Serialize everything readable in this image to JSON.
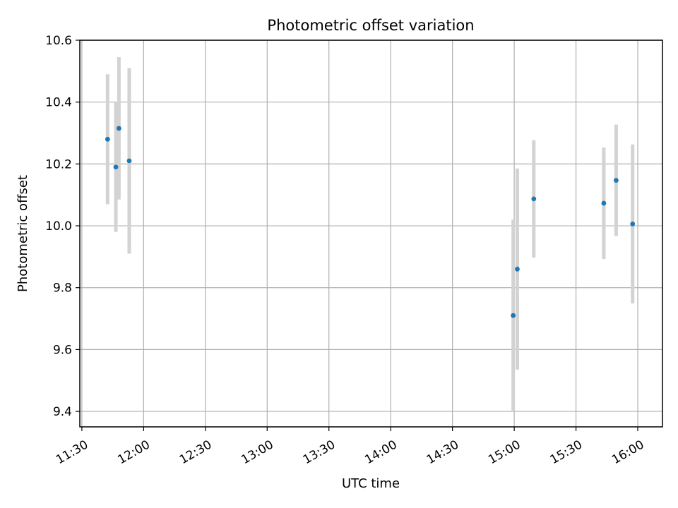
{
  "chart_data": {
    "type": "scatter",
    "title": "Photometric offset variation",
    "xlabel": "UTC time",
    "ylabel": "Photometric offset",
    "xlim": [
      "11:29",
      "16:12"
    ],
    "ylim": [
      9.35,
      10.6
    ],
    "x_ticks": [
      "11:30",
      "12:00",
      "12:30",
      "13:00",
      "13:30",
      "14:00",
      "14:30",
      "15:00",
      "15:30",
      "16:00"
    ],
    "y_ticks": [
      "9.4",
      "9.6",
      "9.8",
      "10.0",
      "10.2",
      "10.4",
      "10.6"
    ],
    "grid": true,
    "errorbar_color": "#d3d3d3",
    "marker_color": "#1f77b4",
    "points": [
      {
        "x": "11:42:30",
        "y": 10.28,
        "err": 0.21
      },
      {
        "x": "11:46:30",
        "y": 10.19,
        "err": 0.21
      },
      {
        "x": "11:48:00",
        "y": 10.315,
        "err": 0.23
      },
      {
        "x": "11:53:00",
        "y": 10.21,
        "err": 0.3
      },
      {
        "x": "14:59:30",
        "y": 9.71,
        "err": 0.31
      },
      {
        "x": "15:01:30",
        "y": 9.86,
        "err": 0.325
      },
      {
        "x": "15:09:30",
        "y": 10.087,
        "err": 0.19
      },
      {
        "x": "15:43:30",
        "y": 10.073,
        "err": 0.18
      },
      {
        "x": "15:49:30",
        "y": 10.147,
        "err": 0.18
      },
      {
        "x": "15:57:30",
        "y": 10.006,
        "err": 0.257
      }
    ]
  }
}
